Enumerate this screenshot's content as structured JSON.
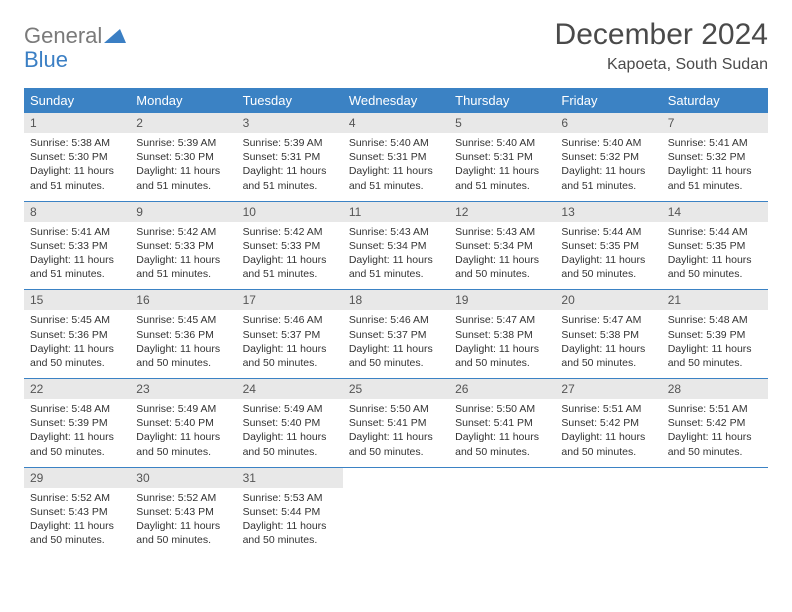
{
  "brand": {
    "line1": "General",
    "line2": "Blue"
  },
  "title": "December 2024",
  "location": "Kapoeta, South Sudan",
  "colors": {
    "header_bg": "#3b82c4",
    "header_text": "#ffffff",
    "daynum_bg": "#e8e8e8",
    "border": "#3b82c4",
    "logo_gray": "#7a7a7a",
    "logo_blue": "#3b7fc4"
  },
  "weekdays": [
    "Sunday",
    "Monday",
    "Tuesday",
    "Wednesday",
    "Thursday",
    "Friday",
    "Saturday"
  ],
  "weeks": [
    [
      {
        "n": "1",
        "sunrise": "5:38 AM",
        "sunset": "5:30 PM",
        "daylight": "11 hours and 51 minutes."
      },
      {
        "n": "2",
        "sunrise": "5:39 AM",
        "sunset": "5:30 PM",
        "daylight": "11 hours and 51 minutes."
      },
      {
        "n": "3",
        "sunrise": "5:39 AM",
        "sunset": "5:31 PM",
        "daylight": "11 hours and 51 minutes."
      },
      {
        "n": "4",
        "sunrise": "5:40 AM",
        "sunset": "5:31 PM",
        "daylight": "11 hours and 51 minutes."
      },
      {
        "n": "5",
        "sunrise": "5:40 AM",
        "sunset": "5:31 PM",
        "daylight": "11 hours and 51 minutes."
      },
      {
        "n": "6",
        "sunrise": "5:40 AM",
        "sunset": "5:32 PM",
        "daylight": "11 hours and 51 minutes."
      },
      {
        "n": "7",
        "sunrise": "5:41 AM",
        "sunset": "5:32 PM",
        "daylight": "11 hours and 51 minutes."
      }
    ],
    [
      {
        "n": "8",
        "sunrise": "5:41 AM",
        "sunset": "5:33 PM",
        "daylight": "11 hours and 51 minutes."
      },
      {
        "n": "9",
        "sunrise": "5:42 AM",
        "sunset": "5:33 PM",
        "daylight": "11 hours and 51 minutes."
      },
      {
        "n": "10",
        "sunrise": "5:42 AM",
        "sunset": "5:33 PM",
        "daylight": "11 hours and 51 minutes."
      },
      {
        "n": "11",
        "sunrise": "5:43 AM",
        "sunset": "5:34 PM",
        "daylight": "11 hours and 51 minutes."
      },
      {
        "n": "12",
        "sunrise": "5:43 AM",
        "sunset": "5:34 PM",
        "daylight": "11 hours and 50 minutes."
      },
      {
        "n": "13",
        "sunrise": "5:44 AM",
        "sunset": "5:35 PM",
        "daylight": "11 hours and 50 minutes."
      },
      {
        "n": "14",
        "sunrise": "5:44 AM",
        "sunset": "5:35 PM",
        "daylight": "11 hours and 50 minutes."
      }
    ],
    [
      {
        "n": "15",
        "sunrise": "5:45 AM",
        "sunset": "5:36 PM",
        "daylight": "11 hours and 50 minutes."
      },
      {
        "n": "16",
        "sunrise": "5:45 AM",
        "sunset": "5:36 PM",
        "daylight": "11 hours and 50 minutes."
      },
      {
        "n": "17",
        "sunrise": "5:46 AM",
        "sunset": "5:37 PM",
        "daylight": "11 hours and 50 minutes."
      },
      {
        "n": "18",
        "sunrise": "5:46 AM",
        "sunset": "5:37 PM",
        "daylight": "11 hours and 50 minutes."
      },
      {
        "n": "19",
        "sunrise": "5:47 AM",
        "sunset": "5:38 PM",
        "daylight": "11 hours and 50 minutes."
      },
      {
        "n": "20",
        "sunrise": "5:47 AM",
        "sunset": "5:38 PM",
        "daylight": "11 hours and 50 minutes."
      },
      {
        "n": "21",
        "sunrise": "5:48 AM",
        "sunset": "5:39 PM",
        "daylight": "11 hours and 50 minutes."
      }
    ],
    [
      {
        "n": "22",
        "sunrise": "5:48 AM",
        "sunset": "5:39 PM",
        "daylight": "11 hours and 50 minutes."
      },
      {
        "n": "23",
        "sunrise": "5:49 AM",
        "sunset": "5:40 PM",
        "daylight": "11 hours and 50 minutes."
      },
      {
        "n": "24",
        "sunrise": "5:49 AM",
        "sunset": "5:40 PM",
        "daylight": "11 hours and 50 minutes."
      },
      {
        "n": "25",
        "sunrise": "5:50 AM",
        "sunset": "5:41 PM",
        "daylight": "11 hours and 50 minutes."
      },
      {
        "n": "26",
        "sunrise": "5:50 AM",
        "sunset": "5:41 PM",
        "daylight": "11 hours and 50 minutes."
      },
      {
        "n": "27",
        "sunrise": "5:51 AM",
        "sunset": "5:42 PM",
        "daylight": "11 hours and 50 minutes."
      },
      {
        "n": "28",
        "sunrise": "5:51 AM",
        "sunset": "5:42 PM",
        "daylight": "11 hours and 50 minutes."
      }
    ],
    [
      {
        "n": "29",
        "sunrise": "5:52 AM",
        "sunset": "5:43 PM",
        "daylight": "11 hours and 50 minutes."
      },
      {
        "n": "30",
        "sunrise": "5:52 AM",
        "sunset": "5:43 PM",
        "daylight": "11 hours and 50 minutes."
      },
      {
        "n": "31",
        "sunrise": "5:53 AM",
        "sunset": "5:44 PM",
        "daylight": "11 hours and 50 minutes."
      },
      null,
      null,
      null,
      null
    ]
  ],
  "labels": {
    "sunrise": "Sunrise:",
    "sunset": "Sunset:",
    "daylight": "Daylight:"
  }
}
